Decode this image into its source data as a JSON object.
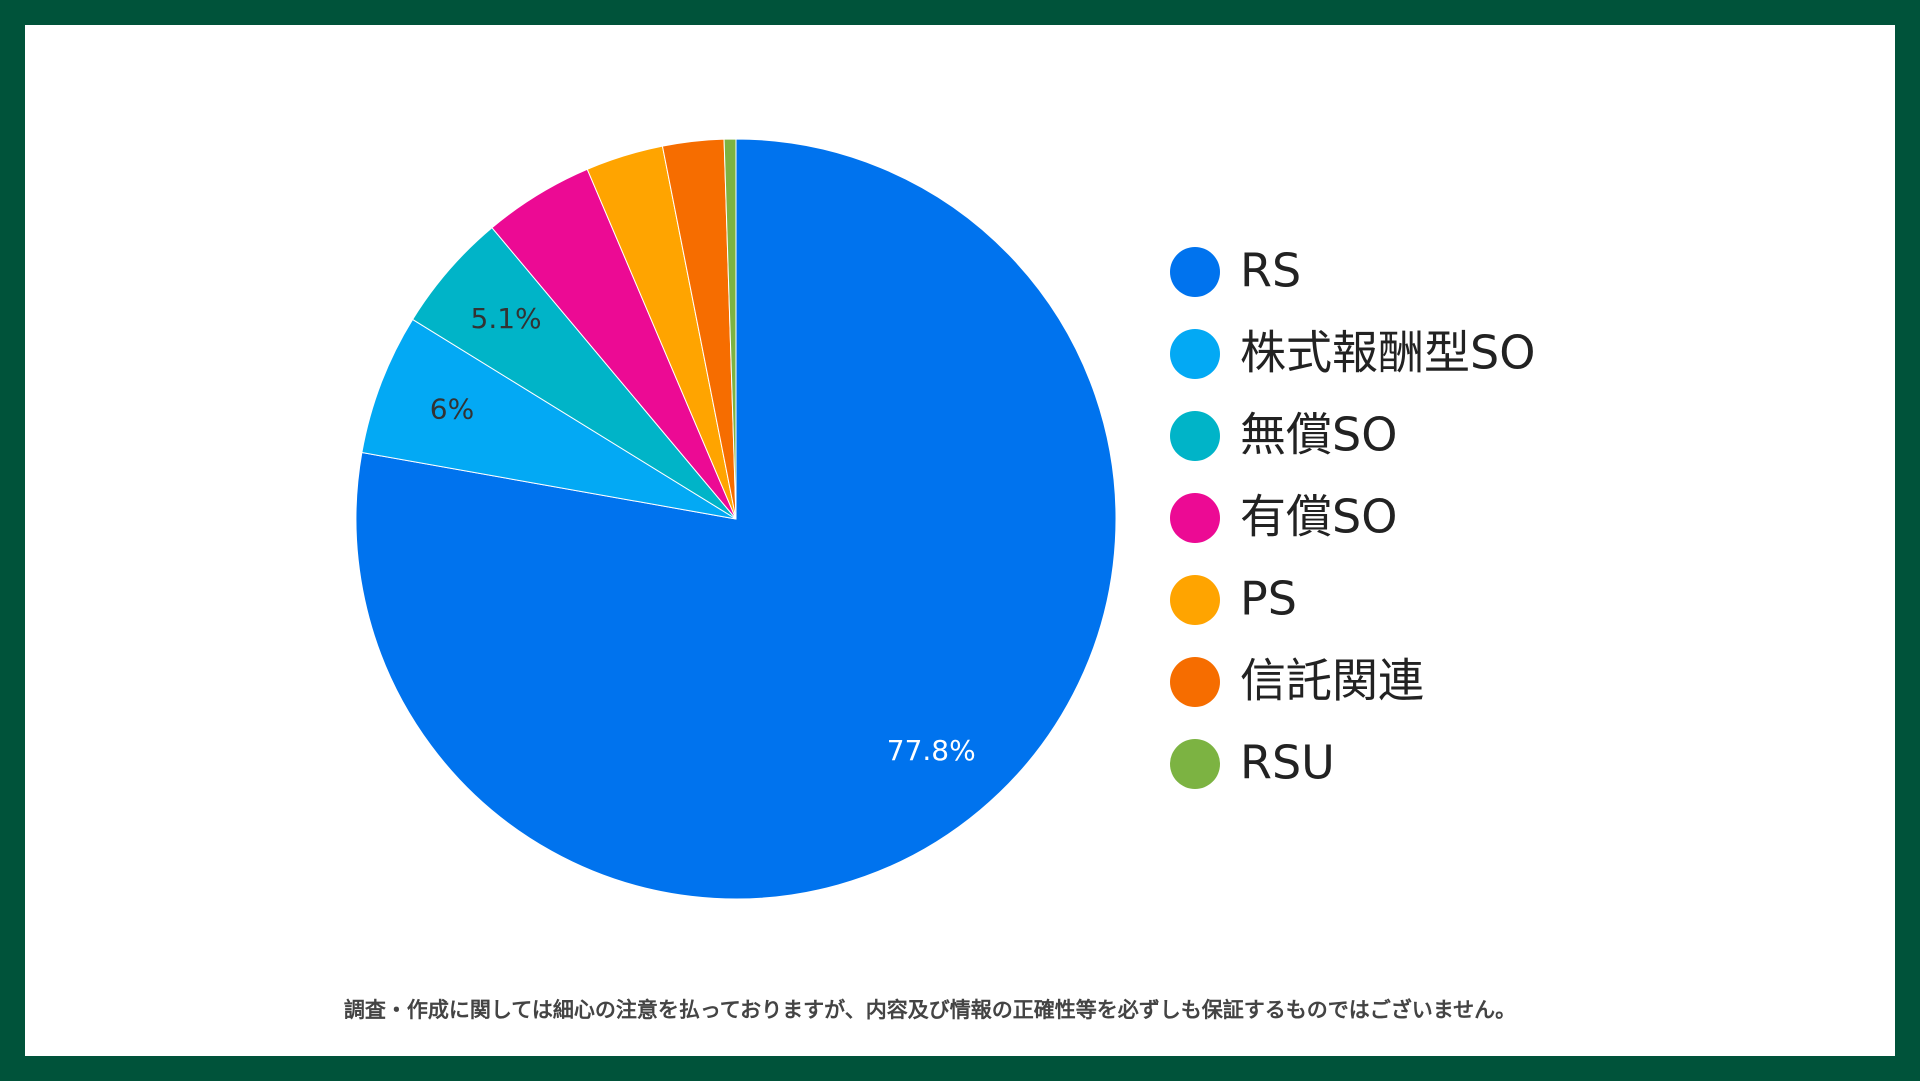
{
  "chart_data": {
    "type": "pie",
    "categories": [
      "RS",
      "株式報酬型SO",
      "無償SO",
      "有償SO",
      "PS",
      "信託関連",
      "RSU"
    ],
    "values": [
      77.8,
      6,
      5.1,
      4.7,
      3.3,
      2.6,
      0.5
    ],
    "value_labels": [
      "77.8%",
      "6%",
      "5.1%",
      null,
      null,
      null,
      null
    ],
    "colors": [
      "#0073ee",
      "#03a9f4",
      "#00b4c8",
      "#ec0a94",
      "#ffa400",
      "#f66d00",
      "#7cb342"
    ],
    "legend": "right",
    "note": "調査・作成に関しては細心の注意を払っておりますが、内容及び情報の正確性等を必ずしも保証するものではございません。"
  }
}
